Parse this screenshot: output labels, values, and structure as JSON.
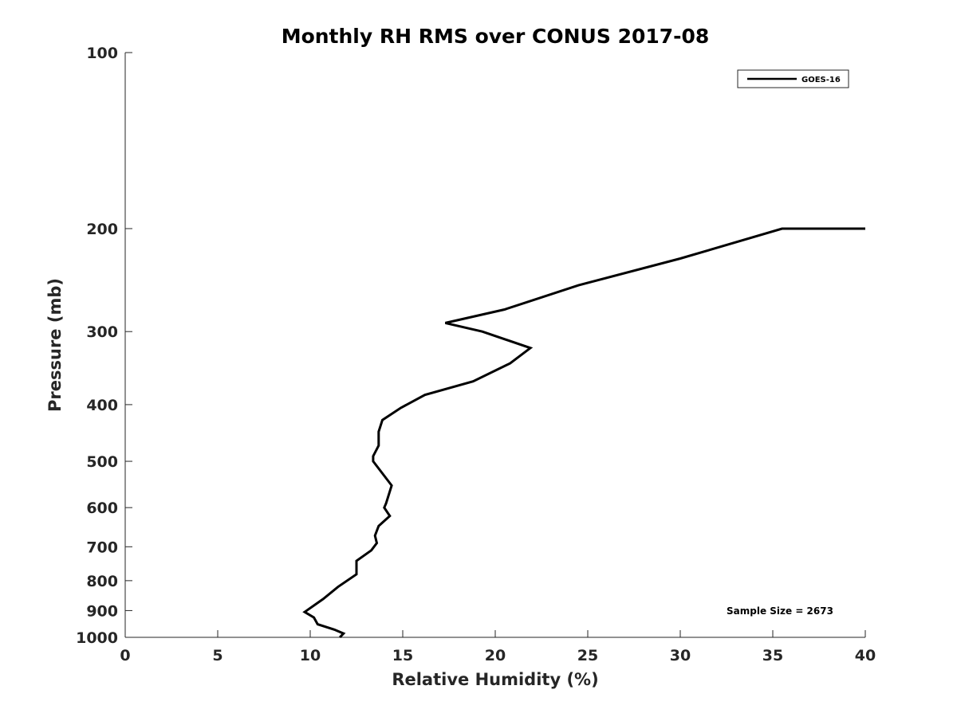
{
  "chart_data": {
    "type": "line",
    "title": "Monthly RH RMS over CONUS  2017-08",
    "xlabel": "Relative Humidity (%)",
    "ylabel": "Pressure (mb)",
    "xlim": [
      0,
      40
    ],
    "ylim": [
      100,
      1000
    ],
    "y_scale": "log",
    "y_reversed": true,
    "xticks": [
      0,
      5,
      10,
      15,
      20,
      25,
      30,
      35,
      40
    ],
    "yticks": [
      100,
      200,
      300,
      400,
      500,
      600,
      700,
      800,
      900,
      1000
    ],
    "grid": false,
    "legend_position": "top-right",
    "line_color": "#000000",
    "series": [
      {
        "name": "GOES-16",
        "x": [
          40.0,
          35.5,
          30.0,
          24.5,
          20.5,
          17.3,
          19.3,
          21.9,
          20.8,
          18.8,
          16.2,
          14.9,
          13.9,
          13.7,
          13.7,
          13.4,
          13.4,
          14.4,
          14.1,
          14.0,
          14.3,
          13.7,
          13.5,
          13.6,
          13.3,
          12.5,
          12.5,
          11.5,
          10.7,
          9.7,
          10.2,
          10.4,
          11.3,
          11.8,
          11.6
        ],
        "y": [
          200,
          200,
          225,
          250,
          275,
          290,
          300,
          320,
          340,
          365,
          385,
          405,
          425,
          445,
          470,
          490,
          500,
          550,
          590,
          600,
          620,
          645,
          670,
          690,
          710,
          740,
          780,
          820,
          860,
          905,
          925,
          950,
          970,
          985,
          1000
        ]
      }
    ],
    "annotations": [
      {
        "text": "Sample Size = 2673"
      }
    ]
  }
}
